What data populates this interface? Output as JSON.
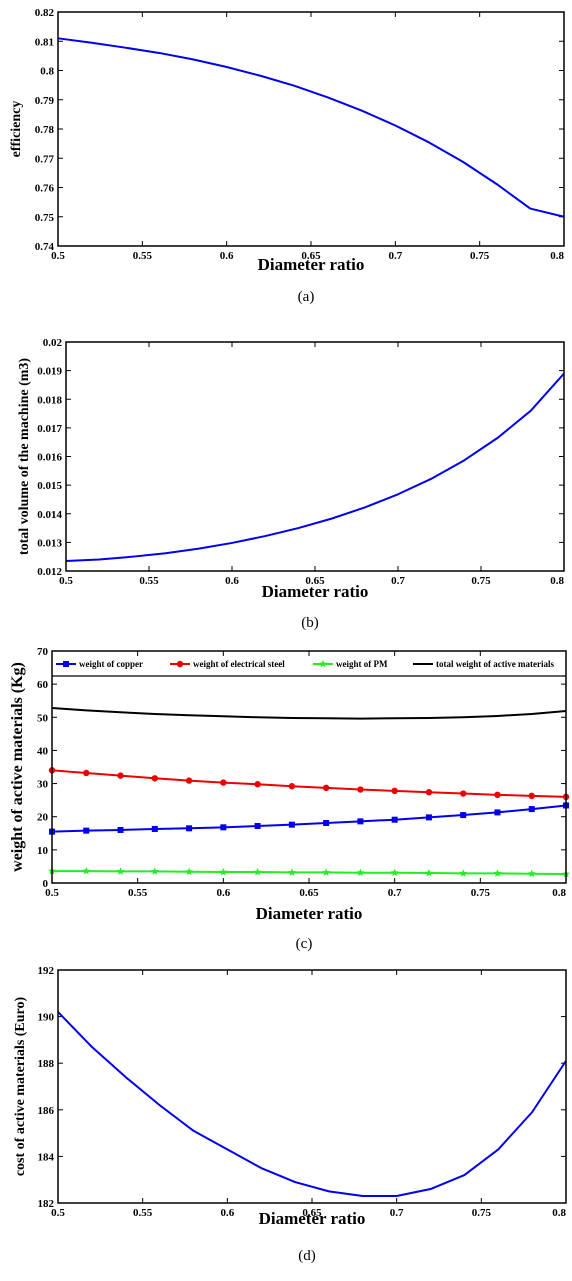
{
  "chart_data": [
    {
      "type": "line",
      "xlabel": "Diameter ratio",
      "ylabel": "efficiency",
      "caption": "(a)",
      "xlim": [
        0.5,
        0.8
      ],
      "ylim": [
        0.74,
        0.82
      ],
      "x_ticks": [
        "0.5",
        "0.55",
        "0.6",
        "0.65",
        "0.7",
        "0.75",
        "0.8"
      ],
      "y_ticks": [
        "0.74",
        "0.75",
        "0.76",
        "0.77",
        "0.78",
        "0.79",
        "0.8",
        "0.81",
        "0.82"
      ],
      "series": [
        {
          "color": "#0000ee",
          "x": [
            0.5,
            0.52,
            0.54,
            0.56,
            0.58,
            0.6,
            0.62,
            0.64,
            0.66,
            0.68,
            0.7,
            0.72,
            0.74,
            0.76,
            0.78,
            0.8
          ],
          "y": [
            0.811,
            0.8095,
            0.8078,
            0.806,
            0.8038,
            0.8012,
            0.7982,
            0.7948,
            0.7908,
            0.7863,
            0.7812,
            0.7754,
            0.7688,
            0.7612,
            0.7528,
            0.75
          ]
        }
      ],
      "grid": false
    },
    {
      "type": "line",
      "xlabel": "Diameter ratio",
      "ylabel": "total volume of the machine (m3)",
      "caption": "(b)",
      "xlim": [
        0.5,
        0.8
      ],
      "ylim": [
        0.012,
        0.02
      ],
      "x_ticks": [
        "0.5",
        "0.55",
        "0.6",
        "0.65",
        "0.7",
        "0.75",
        "0.8"
      ],
      "y_ticks": [
        "0.012",
        "0.013",
        "0.014",
        "0.015",
        "0.016",
        "0.017",
        "0.018",
        "0.019",
        "0.02"
      ],
      "series": [
        {
          "color": "#0000ee",
          "x": [
            0.5,
            0.52,
            0.54,
            0.56,
            0.58,
            0.6,
            0.62,
            0.64,
            0.66,
            0.68,
            0.7,
            0.72,
            0.74,
            0.76,
            0.78,
            0.8
          ],
          "y": [
            0.01235,
            0.0124,
            0.0125,
            0.01262,
            0.01278,
            0.01298,
            0.01322,
            0.0135,
            0.01383,
            0.01422,
            0.01468,
            0.01522,
            0.01587,
            0.01665,
            0.0176,
            0.0189
          ]
        }
      ],
      "grid": false
    },
    {
      "type": "line",
      "xlabel": "Diameter ratio",
      "ylabel": "weight of active materials (Kg)",
      "caption": "(c)",
      "xlim": [
        0.5,
        0.8
      ],
      "ylim": [
        0,
        70
      ],
      "x_ticks": [
        "0.5",
        "0.55",
        "0.6",
        "0.65",
        "0.7",
        "0.75",
        "0.8"
      ],
      "y_ticks": [
        "0",
        "10",
        "20",
        "30",
        "40",
        "50",
        "60",
        "70"
      ],
      "legend_position": "top",
      "series": [
        {
          "name": "weight of copper",
          "color": "#0000ee",
          "marker": "square",
          "x": [
            0.5,
            0.52,
            0.54,
            0.56,
            0.58,
            0.6,
            0.62,
            0.64,
            0.66,
            0.68,
            0.7,
            0.72,
            0.74,
            0.76,
            0.78,
            0.8
          ],
          "y": [
            15.5,
            15.8,
            16.0,
            16.3,
            16.5,
            16.8,
            17.2,
            17.6,
            18.1,
            18.6,
            19.1,
            19.8,
            20.5,
            21.3,
            22.3,
            23.4
          ]
        },
        {
          "name": "weight of electrical steel",
          "color": "#ee0000",
          "marker": "circle",
          "x": [
            0.5,
            0.52,
            0.54,
            0.56,
            0.58,
            0.6,
            0.62,
            0.64,
            0.66,
            0.68,
            0.7,
            0.72,
            0.74,
            0.76,
            0.78,
            0.8
          ],
          "y": [
            34.0,
            33.2,
            32.4,
            31.6,
            30.9,
            30.3,
            29.8,
            29.2,
            28.7,
            28.2,
            27.8,
            27.4,
            27.0,
            26.6,
            26.3,
            26.0
          ]
        },
        {
          "name": "weight of PM",
          "color": "#22ee22",
          "marker": "star",
          "x": [
            0.5,
            0.52,
            0.54,
            0.56,
            0.58,
            0.6,
            0.62,
            0.64,
            0.66,
            0.68,
            0.7,
            0.72,
            0.74,
            0.76,
            0.78,
            0.8
          ],
          "y": [
            3.6,
            3.6,
            3.5,
            3.5,
            3.4,
            3.3,
            3.3,
            3.2,
            3.2,
            3.1,
            3.1,
            3.0,
            2.9,
            2.9,
            2.8,
            2.7
          ]
        },
        {
          "name": "total weight of active materials",
          "color": "#000000",
          "marker": "none",
          "x": [
            0.5,
            0.52,
            0.54,
            0.56,
            0.58,
            0.6,
            0.62,
            0.64,
            0.66,
            0.68,
            0.7,
            0.72,
            0.74,
            0.76,
            0.78,
            0.8
          ],
          "y": [
            52.8,
            52.1,
            51.5,
            51.0,
            50.6,
            50.3,
            50.0,
            49.8,
            49.7,
            49.6,
            49.7,
            49.8,
            50.0,
            50.4,
            51.0,
            51.9
          ]
        }
      ],
      "grid": false
    },
    {
      "type": "line",
      "xlabel": "Diameter ratio",
      "ylabel": "cost of active materials (Euro)",
      "caption": "(d)",
      "xlim": [
        0.5,
        0.8
      ],
      "ylim": [
        182,
        192
      ],
      "x_ticks": [
        "0.5",
        "0.55",
        "0.6",
        "0.65",
        "0.7",
        "0.75",
        "0.8"
      ],
      "y_ticks": [
        "182",
        "184",
        "186",
        "188",
        "190",
        "192"
      ],
      "series": [
        {
          "color": "#0000ee",
          "x": [
            0.5,
            0.52,
            0.54,
            0.56,
            0.58,
            0.6,
            0.62,
            0.64,
            0.66,
            0.68,
            0.7,
            0.72,
            0.74,
            0.76,
            0.78,
            0.8
          ],
          "y": [
            190.2,
            188.7,
            187.4,
            186.2,
            185.1,
            184.3,
            183.5,
            182.9,
            182.5,
            182.3,
            182.3,
            182.6,
            183.2,
            184.3,
            185.9,
            188.1
          ]
        }
      ],
      "grid": false
    }
  ]
}
